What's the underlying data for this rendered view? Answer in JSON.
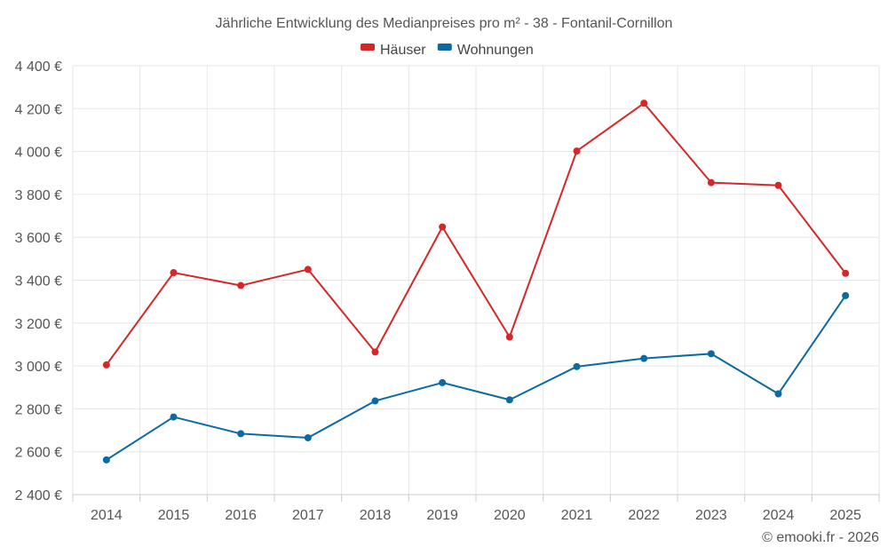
{
  "chart_data": {
    "type": "line",
    "title": "Jährliche Entwicklung des Medianpreises pro m² - 38 - Fontanil-Cornillon",
    "categories": [
      "2014",
      "2015",
      "2016",
      "2017",
      "2018",
      "2019",
      "2020",
      "2021",
      "2022",
      "2023",
      "2024",
      "2025"
    ],
    "series": [
      {
        "name": "Häuser",
        "color": "#d62728",
        "values": [
          3005,
          3435,
          3375,
          3450,
          3065,
          3648,
          3135,
          4002,
          4225,
          3855,
          3842,
          3432
        ]
      },
      {
        "name": "Wohnungen",
        "color": "#0b6aa2",
        "values": [
          2562,
          2762,
          2684,
          2665,
          2837,
          2922,
          2842,
          2997,
          3035,
          3057,
          2870,
          3328
        ]
      }
    ],
    "ylim": [
      2400,
      4400
    ],
    "yticks": [
      2400,
      2600,
      2800,
      3000,
      3200,
      3400,
      3600,
      3800,
      4000,
      4200,
      4400
    ],
    "ytick_labels": [
      "2 400 €",
      "2 600 €",
      "2 800 €",
      "3 000 €",
      "3 200 €",
      "3 400 €",
      "3 600 €",
      "3 800 €",
      "4 000 €",
      "4 200 €",
      "4 400 €"
    ],
    "xlabel": "",
    "ylabel": "",
    "legend_position": "top-center",
    "grid": true
  },
  "credit": "© emooki.fr - 2026"
}
